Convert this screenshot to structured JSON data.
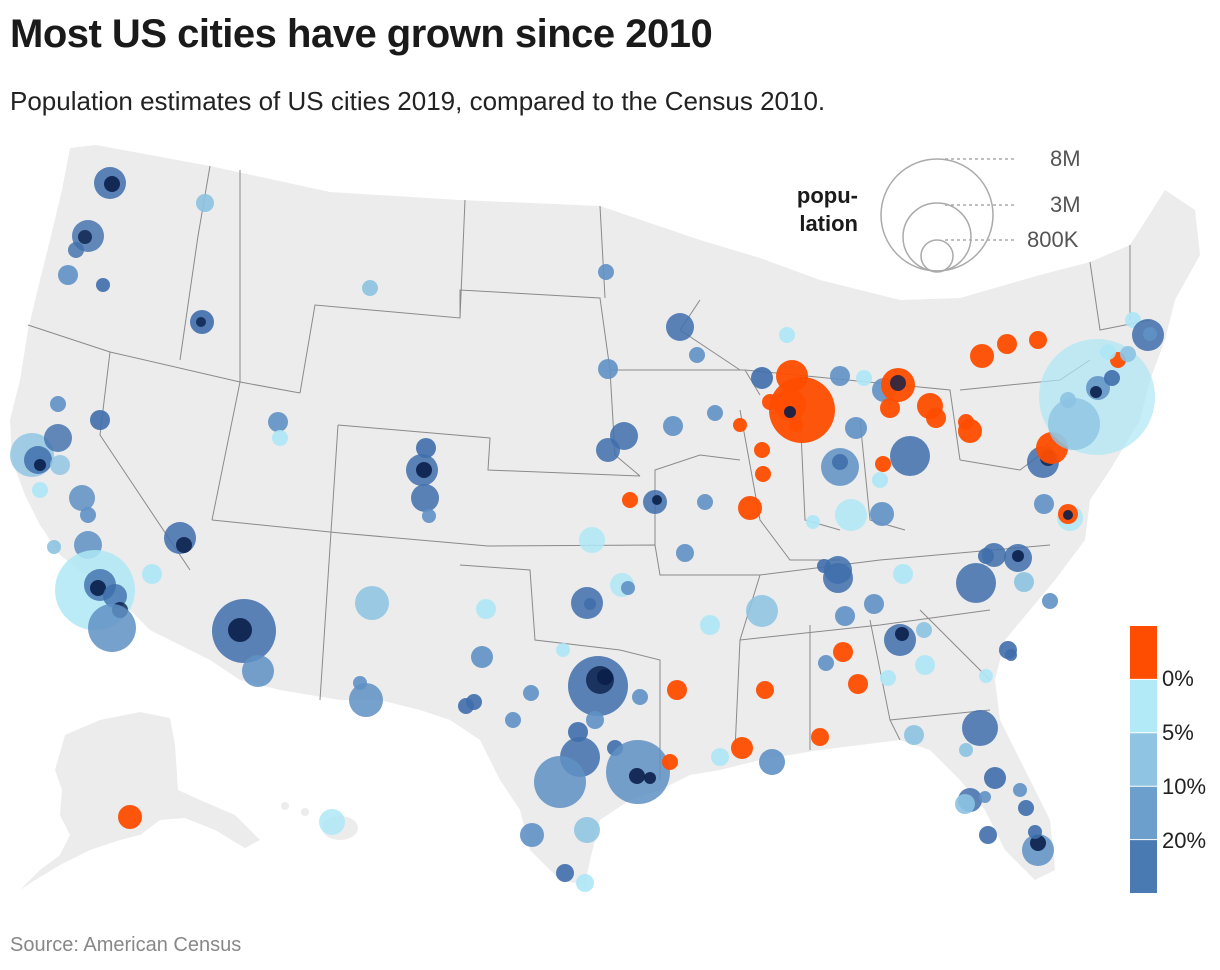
{
  "header": {
    "title": "Most US cities have grown since 2010",
    "subtitle": "Population estimates of US cities 2019, compared to the Census 2010."
  },
  "footer": {
    "source": "Source: American Census"
  },
  "size_legend": {
    "title_line1": "popu-",
    "title_line2": "lation",
    "items": [
      {
        "label": "8M",
        "value": 8000000
      },
      {
        "label": "3M",
        "value": 3000000
      },
      {
        "label": "800K",
        "value": 800000
      }
    ]
  },
  "color_legend": {
    "labels": [
      "0%",
      "5%",
      "10%",
      "20%"
    ],
    "colors": [
      "#ff4d00",
      "#b2ebf7",
      "#8fc5e3",
      "#6d9fcc",
      "#4a7ab2"
    ]
  },
  "colors": {
    "land": "#ececec",
    "borders": "#8a8a8a",
    "shrinking": "#ff4d00",
    "growth_0_5": "#aee7f6",
    "growth_5_10": "#8cc3e2",
    "growth_10_20": "#5f91c4",
    "growth_20_plus": "#3f6eab",
    "dense_core": "#0a1f4a"
  }
}
